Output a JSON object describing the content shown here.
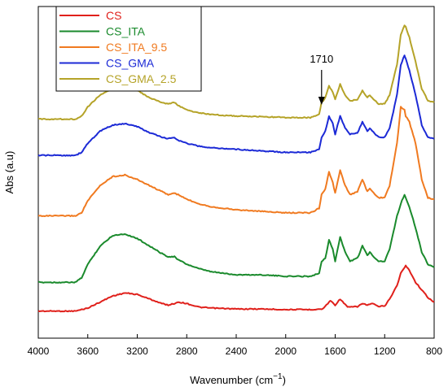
{
  "chart_data": {
    "type": "line",
    "title": "",
    "xlabel": "Wavenumber (cm",
    "xlabel_sup": "−1",
    "xlabel_close": ")",
    "ylabel": "Abs (a.u)",
    "xlim": [
      4000,
      800
    ],
    "x_reversed": true,
    "x_ticks": [
      4000,
      3600,
      3200,
      2800,
      2400,
      2000,
      1600,
      1200,
      800
    ],
    "ylim": [
      0,
      100
    ],
    "y_ticks_shown": false,
    "grid": false,
    "legend_position": "top-left",
    "annotations": [
      {
        "text": "1710",
        "x": 1710,
        "type": "arrow"
      }
    ],
    "series": [
      {
        "name": "CS",
        "color": "#e0201b",
        "x": [
          4000,
          3700,
          3600,
          3500,
          3400,
          3300,
          3200,
          3100,
          3000,
          2950,
          2900,
          2870,
          2800,
          2700,
          2600,
          2400,
          2200,
          2000,
          1800,
          1700,
          1660,
          1640,
          1600,
          1560,
          1500,
          1420,
          1380,
          1340,
          1300,
          1250,
          1200,
          1160,
          1100,
          1070,
          1030,
          1000,
          950,
          900,
          850,
          800
        ],
        "y": [
          2.5,
          2.5,
          3.5,
          5.5,
          7.5,
          8.5,
          8.0,
          6.5,
          5.0,
          4.5,
          5.0,
          5.5,
          5.0,
          3.8,
          3.5,
          3.2,
          3.2,
          3.0,
          3.0,
          3.2,
          5.0,
          6.0,
          4.5,
          6.5,
          3.8,
          4.0,
          5.0,
          4.5,
          5.0,
          4.0,
          4.2,
          6.5,
          11.0,
          15.0,
          17.5,
          16.0,
          12.0,
          9.5,
          7.0,
          5.5
        ]
      },
      {
        "name": "CS_ITA",
        "color": "#1a8a2c",
        "x": [
          4000,
          3700,
          3650,
          3600,
          3500,
          3400,
          3300,
          3200,
          3100,
          3000,
          2950,
          2900,
          2870,
          2800,
          2700,
          2600,
          2400,
          2200,
          2000,
          1800,
          1730,
          1710,
          1680,
          1650,
          1620,
          1600,
          1560,
          1520,
          1480,
          1420,
          1380,
          1340,
          1320,
          1300,
          1250,
          1200,
          1160,
          1100,
          1070,
          1040,
          1030,
          1000,
          950,
          900,
          850,
          800
        ],
        "y": [
          12.0,
          12.0,
          13.5,
          18.0,
          24.0,
          27.5,
          28.0,
          26.5,
          24.0,
          21.5,
          20.5,
          20.5,
          19.5,
          18.0,
          16.5,
          15.5,
          14.5,
          14.5,
          14.0,
          14.0,
          15.0,
          19.0,
          20.0,
          26.0,
          23.0,
          19.0,
          27.0,
          22.0,
          19.0,
          20.0,
          24.0,
          21.0,
          22.0,
          21.0,
          19.0,
          19.0,
          23.0,
          34.0,
          38.0,
          41.0,
          40.0,
          37.0,
          30.0,
          22.0,
          18.0,
          17.0
        ]
      },
      {
        "name": "CS_ITA_9.5",
        "color": "#f07a20",
        "x": [
          4000,
          3700,
          3650,
          3600,
          3500,
          3400,
          3300,
          3200,
          3100,
          3000,
          2950,
          2900,
          2870,
          2800,
          2700,
          2600,
          2400,
          2200,
          2000,
          1800,
          1730,
          1710,
          1680,
          1650,
          1620,
          1600,
          1560,
          1520,
          1480,
          1420,
          1380,
          1340,
          1320,
          1300,
          1250,
          1200,
          1160,
          1100,
          1070,
          1040,
          1030,
          1000,
          950,
          900,
          850,
          800
        ],
        "y": [
          34.0,
          34.0,
          35.0,
          39.0,
          44.0,
          47.0,
          47.5,
          46.0,
          44.0,
          42.0,
          41.0,
          41.5,
          41.0,
          39.5,
          38.0,
          37.0,
          36.0,
          35.5,
          35.0,
          35.0,
          36.5,
          41.0,
          43.0,
          48.5,
          45.0,
          41.5,
          49.0,
          44.0,
          41.0,
          42.0,
          46.0,
          42.0,
          43.0,
          42.0,
          40.0,
          40.0,
          44.0,
          58.0,
          70.0,
          69.0,
          67.0,
          65.0,
          58.0,
          46.0,
          40.0,
          39.5
        ]
      },
      {
        "name": "CS_GMA",
        "color": "#1c2ad6",
        "x": [
          4000,
          3700,
          3650,
          3600,
          3500,
          3400,
          3300,
          3200,
          3100,
          3000,
          2950,
          2900,
          2870,
          2800,
          2700,
          2600,
          2400,
          2200,
          2000,
          1800,
          1730,
          1710,
          1680,
          1650,
          1620,
          1600,
          1560,
          1520,
          1480,
          1420,
          1380,
          1340,
          1320,
          1300,
          1250,
          1200,
          1160,
          1100,
          1070,
          1040,
          1030,
          1000,
          950,
          900,
          850,
          800
        ],
        "y": [
          54.0,
          54.0,
          55.0,
          58.0,
          62.0,
          64.0,
          64.5,
          63.5,
          61.5,
          60.0,
          59.5,
          60.0,
          59.0,
          58.0,
          57.0,
          56.5,
          56.0,
          55.5,
          55.0,
          55.0,
          56.0,
          60.0,
          62.0,
          67.0,
          64.5,
          61.0,
          67.0,
          63.0,
          61.0,
          61.5,
          65.0,
          62.0,
          63.0,
          62.0,
          60.0,
          60.0,
          63.0,
          74.0,
          84.0,
          87.0,
          86.0,
          82.0,
          74.0,
          64.0,
          60.0,
          59.5
        ]
      },
      {
        "name": "CS_GMA_2.5",
        "color": "#b5a328",
        "x": [
          4000,
          3700,
          3650,
          3600,
          3500,
          3400,
          3300,
          3200,
          3100,
          3000,
          2950,
          2900,
          2870,
          2800,
          2700,
          2600,
          2400,
          2200,
          2000,
          1800,
          1730,
          1710,
          1680,
          1650,
          1620,
          1600,
          1560,
          1520,
          1480,
          1420,
          1380,
          1340,
          1320,
          1300,
          1250,
          1200,
          1160,
          1100,
          1070,
          1040,
          1030,
          1000,
          950,
          900,
          850,
          800
        ],
        "y": [
          66.0,
          66.0,
          67.0,
          70.0,
          74.0,
          76.0,
          76.5,
          75.5,
          73.0,
          71.5,
          71.0,
          71.5,
          70.5,
          69.0,
          68.0,
          67.5,
          67.0,
          66.8,
          66.5,
          66.5,
          67.5,
          71.5,
          73.0,
          77.0,
          75.0,
          72.5,
          77.5,
          74.0,
          72.0,
          72.5,
          75.5,
          73.0,
          74.0,
          73.0,
          71.0,
          71.0,
          74.0,
          84.0,
          94.0,
          97.0,
          96.5,
          93.0,
          85.0,
          76.0,
          72.0,
          71.5
        ]
      }
    ]
  }
}
